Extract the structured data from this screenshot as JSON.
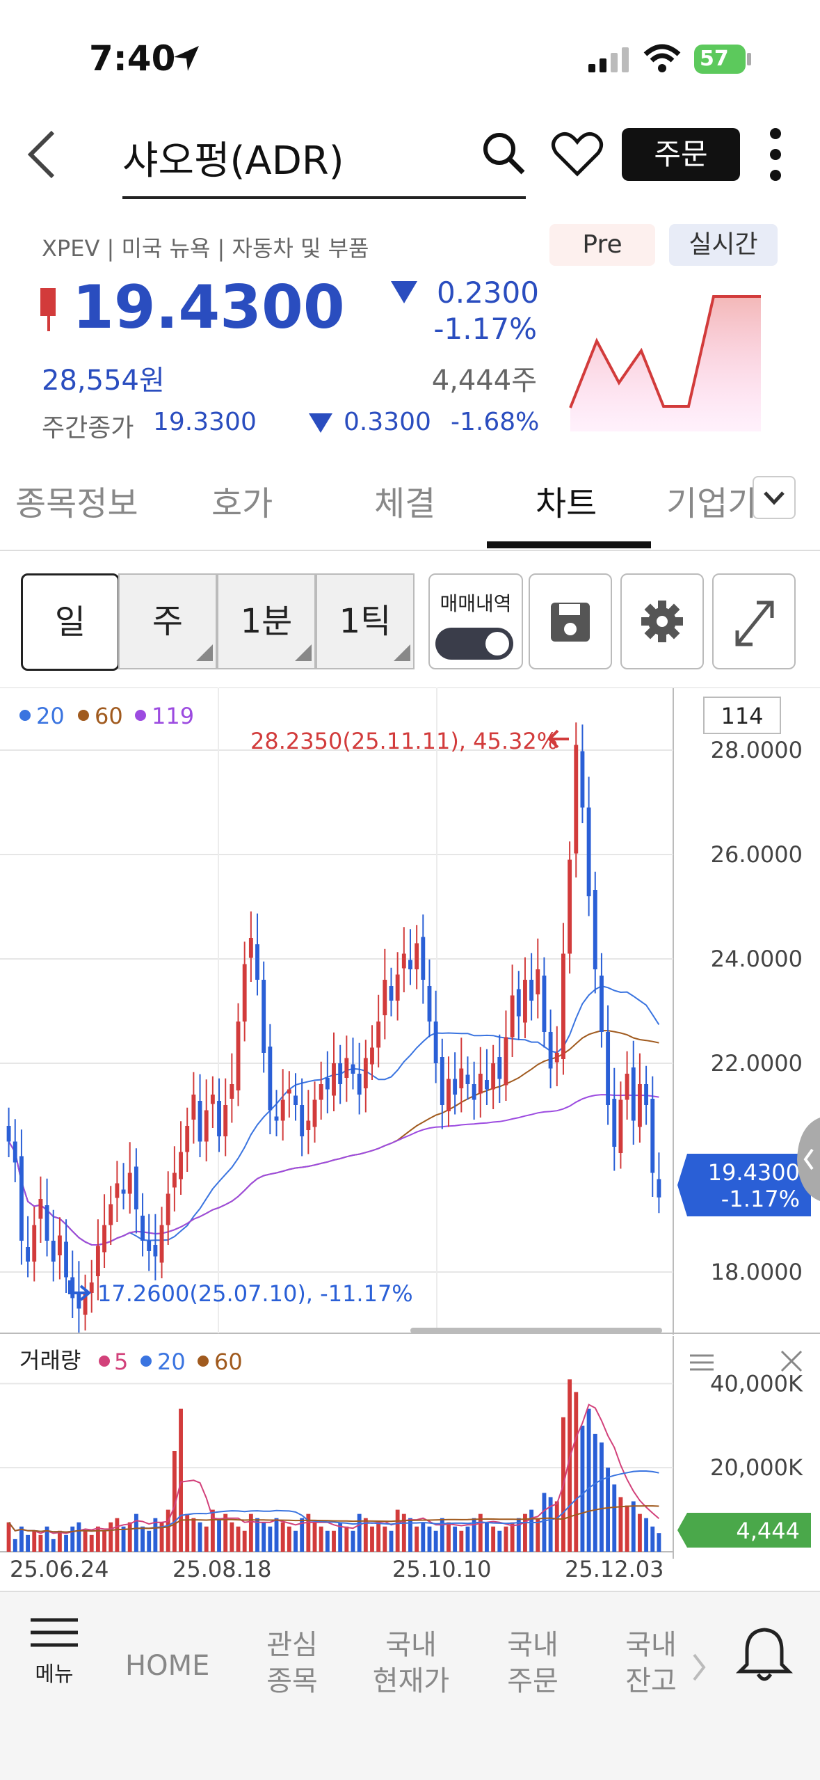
{
  "status": {
    "time": "7:40",
    "battery": "57"
  },
  "header": {
    "title": "샤오펑(ADR)",
    "order_label": "주문"
  },
  "stock": {
    "meta": "XPEV | 미국 뉴욕 | 자동차 및 부품",
    "pre_label": "Pre",
    "realtime_label": "실시간",
    "price": "19.4300",
    "change_abs": "0.2300",
    "change_pct": "-1.17%",
    "krw_price": "28,554원",
    "volume": "4,444주",
    "day_close_label": "주간종가",
    "day_close": "19.3300",
    "day_change_abs": "0.3300",
    "day_change_pct": "-1.68%"
  },
  "tabs": [
    "종목정보",
    "호가",
    "체결",
    "차트",
    "기업가"
  ],
  "periods": [
    "일",
    "주",
    "1분",
    "1틱"
  ],
  "trade_history_label": "매매내역",
  "legend": {
    "ma20": "20",
    "ma60": "60",
    "ma119": "119"
  },
  "chart_box_value": "114",
  "annotations": {
    "high": "28.2350(25.11.11), 45.32%",
    "low": "17.2600(25.07.10), -11.17%"
  },
  "current_label": {
    "price": "19.4300",
    "pct": "-1.17%"
  },
  "volume_panel": {
    "title": "거래량",
    "ma5": "5",
    "ma20": "20",
    "ma60": "60",
    "current": "4,444"
  },
  "colors": {
    "up": "#d23b3b",
    "down": "#2a5fd6",
    "ma20": "#3a74e0",
    "ma60": "#a05a1e",
    "ma119": "#9c4be0"
  },
  "chart_data": {
    "type": "candlestick",
    "y_ticks": [
      "28.0000",
      "26.0000",
      "24.0000",
      "22.0000",
      "18.0000"
    ],
    "ylim": [
      16.8,
      29.2
    ],
    "x_labels": [
      "25.06.24",
      "25.08.18",
      "25.10.10",
      "25.12.03"
    ],
    "volume_ticks": [
      "40,000K",
      "20,000K"
    ],
    "volume_ylim": [
      0,
      48000
    ],
    "closes": [
      20.5,
      20.1,
      18.6,
      18.2,
      18.9,
      19.4,
      18.6,
      18.2,
      18.7,
      17.9,
      17.5,
      17.3,
      17.6,
      17.8,
      18.5,
      18.9,
      19.3,
      19.7,
      19.5,
      19.9,
      19.2,
      18.6,
      18.4,
      18.3,
      18.9,
      19.5,
      19.9,
      20.3,
      20.8,
      21.4,
      20.5,
      21.1,
      21.4,
      20.6,
      21.2,
      21.6,
      22.8,
      23.9,
      24.4,
      23.6,
      22.2,
      21.1,
      20.9,
      21.3,
      21.5,
      21.2,
      20.6,
      20.9,
      21.3,
      21.6,
      21.5,
      22.0,
      21.6,
      22.1,
      21.8,
      21.4,
      22.1,
      22.3,
      22.8,
      23.6,
      23.2,
      23.7,
      24.1,
      23.8,
      24.3,
      23.6,
      22.8,
      22.0,
      21.2,
      21.7,
      21.4,
      21.9,
      21.6,
      21.3,
      21.8,
      21.5,
      22.0,
      21.7,
      22.5,
      23.3,
      22.9,
      23.6,
      23.2,
      23.8,
      22.6,
      21.9,
      22.2,
      24.1,
      25.9,
      28.1,
      26.9,
      25.2,
      23.8,
      22.6,
      21.2,
      20.4,
      21.3,
      21.8,
      20.9,
      21.6,
      21.2,
      19.9,
      19.43
    ],
    "volumes": [
      7000,
      3000,
      6000,
      4000,
      5000,
      4000,
      6000,
      3000,
      5000,
      4000,
      6000,
      7000,
      5000,
      4000,
      6000,
      5000,
      7000,
      8000,
      6000,
      7000,
      9000,
      6000,
      5000,
      8000,
      7000,
      10000,
      24000,
      34000,
      9000,
      8000,
      7000,
      6000,
      10000,
      8000,
      9000,
      7000,
      6000,
      5000,
      9000,
      8000,
      7000,
      6000,
      8000,
      7000,
      6000,
      5000,
      8000,
      9000,
      7000,
      6000,
      5000,
      5000,
      7000,
      6000,
      5000,
      9000,
      8000,
      6000,
      7000,
      6000,
      5000,
      10000,
      9000,
      8000,
      6000,
      7000,
      6000,
      5000,
      8000,
      7000,
      6000,
      5000,
      6000,
      8000,
      9000,
      7000,
      6000,
      5000,
      6000,
      7000,
      8000,
      9000,
      10000,
      8000,
      14000,
      13000,
      12000,
      32000,
      41000,
      38000,
      30000,
      34000,
      28000,
      26000,
      20000,
      16000,
      13000,
      11000,
      12000,
      9000,
      8000,
      6000,
      4444
    ]
  }
}
